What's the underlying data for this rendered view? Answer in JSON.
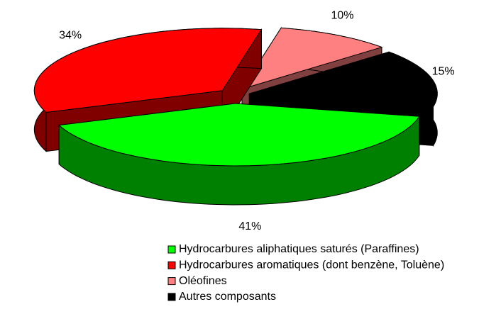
{
  "chart_data": {
    "type": "pie3d",
    "categories": [
      "Hydrocarbures aliphatiques saturés (Paraffines)",
      "Hydrocarbures aromatiques (dont benzène, Toluène)",
      "Oléofines",
      "Autres composants"
    ],
    "values": [
      41,
      34,
      10,
      15
    ],
    "value_labels": [
      "41%",
      "34%",
      "10%",
      "15%"
    ],
    "colors": [
      "#00ff00",
      "#ff0000",
      "#ff8080",
      "#000000"
    ],
    "legend": "bottom"
  }
}
